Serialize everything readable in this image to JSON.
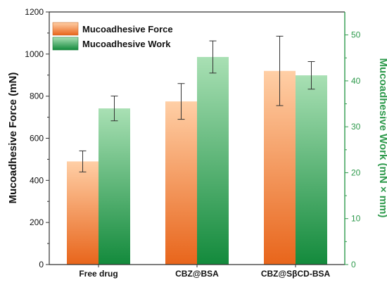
{
  "chart_data": {
    "type": "bar",
    "categories": [
      "Free drug",
      "CBZ@BSA",
      "CBZ@SβCD-BSA"
    ],
    "series": [
      {
        "name": "Mucoadhesive Force",
        "axis": "left",
        "values": [
          490,
          775,
          920
        ],
        "error": [
          50,
          85,
          165
        ]
      },
      {
        "name": "Mucoadhesive Work",
        "axis": "right",
        "values": [
          34,
          45.2,
          41.2
        ],
        "error": [
          2.7,
          3.5,
          3
        ]
      }
    ],
    "ylabel": "Mucoadhesive Force (mN)",
    "ylabel_right": "Mucoadhesive Work (mN × mm)",
    "ylim": [
      0,
      1200
    ],
    "ylim_right": [
      0,
      55
    ],
    "yticks": [
      "0",
      "200",
      "400",
      "600",
      "800",
      "1000",
      "1200"
    ],
    "yticks_right": [
      "0",
      "10",
      "20",
      "30",
      "40",
      "50"
    ],
    "legend_position": "top-left",
    "grid": false,
    "colors": {
      "force_top": "#ffcfa6",
      "force_bottom": "#e8651b",
      "work_top": "#a9e0b4",
      "work_bottom": "#138a3c",
      "right_axis": "#2e9a4c",
      "axis": "#333333"
    }
  }
}
